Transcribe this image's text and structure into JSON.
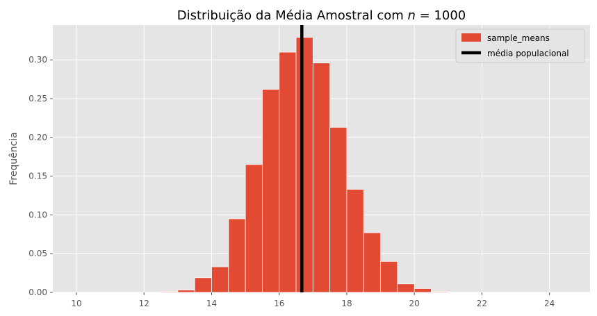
{
  "chart_data": {
    "type": "bar",
    "title": "Distribuição da Média Amostral com $n = 1000$",
    "title_parts": {
      "text": "Distribuição da Média Amostral com ",
      "var": "n",
      "rest": " = 1000"
    },
    "xlabel": "",
    "ylabel": "Frequência",
    "xlim": [
      9.3,
      25.2
    ],
    "ylim": [
      0,
      0.345
    ],
    "xticks": [
      10,
      12,
      14,
      16,
      18,
      20,
      22,
      24
    ],
    "yticks": [
      0.0,
      0.05,
      0.1,
      0.15,
      0.2,
      0.25,
      0.3
    ],
    "ytick_labels": [
      "0.00",
      "0.05",
      "0.10",
      "0.15",
      "0.20",
      "0.25",
      "0.30"
    ],
    "grid": true,
    "legend_position": "top-right",
    "bin_width": 0.5,
    "bins": [
      {
        "x0": 12.5,
        "x1": 13.0,
        "value": 0.001
      },
      {
        "x0": 13.0,
        "x1": 13.5,
        "value": 0.003
      },
      {
        "x0": 13.5,
        "x1": 14.0,
        "value": 0.019
      },
      {
        "x0": 14.0,
        "x1": 14.5,
        "value": 0.033
      },
      {
        "x0": 14.5,
        "x1": 15.0,
        "value": 0.095
      },
      {
        "x0": 15.0,
        "x1": 15.5,
        "value": 0.165
      },
      {
        "x0": 15.5,
        "x1": 16.0,
        "value": 0.262
      },
      {
        "x0": 16.0,
        "x1": 16.5,
        "value": 0.31
      },
      {
        "x0": 16.5,
        "x1": 17.0,
        "value": 0.329
      },
      {
        "x0": 17.0,
        "x1": 17.5,
        "value": 0.296
      },
      {
        "x0": 17.5,
        "x1": 18.0,
        "value": 0.213
      },
      {
        "x0": 18.0,
        "x1": 18.5,
        "value": 0.133
      },
      {
        "x0": 18.5,
        "x1": 19.0,
        "value": 0.077
      },
      {
        "x0": 19.0,
        "x1": 19.5,
        "value": 0.04
      },
      {
        "x0": 19.5,
        "x1": 20.0,
        "value": 0.011
      },
      {
        "x0": 20.0,
        "x1": 20.5,
        "value": 0.005
      },
      {
        "x0": 20.5,
        "x1": 21.0,
        "value": 0.001
      }
    ],
    "series": [
      {
        "name": "sample_means",
        "type": "histogram",
        "color": "#e24a33"
      },
      {
        "name": "média populacional",
        "type": "vline",
        "x": 16.67,
        "color": "#000000"
      }
    ]
  },
  "colors": {
    "background": "#e5e5e5",
    "grid": "#ffffff",
    "bar": "#e24a33",
    "bar_edge": "#ffffff",
    "vline": "#000000"
  }
}
